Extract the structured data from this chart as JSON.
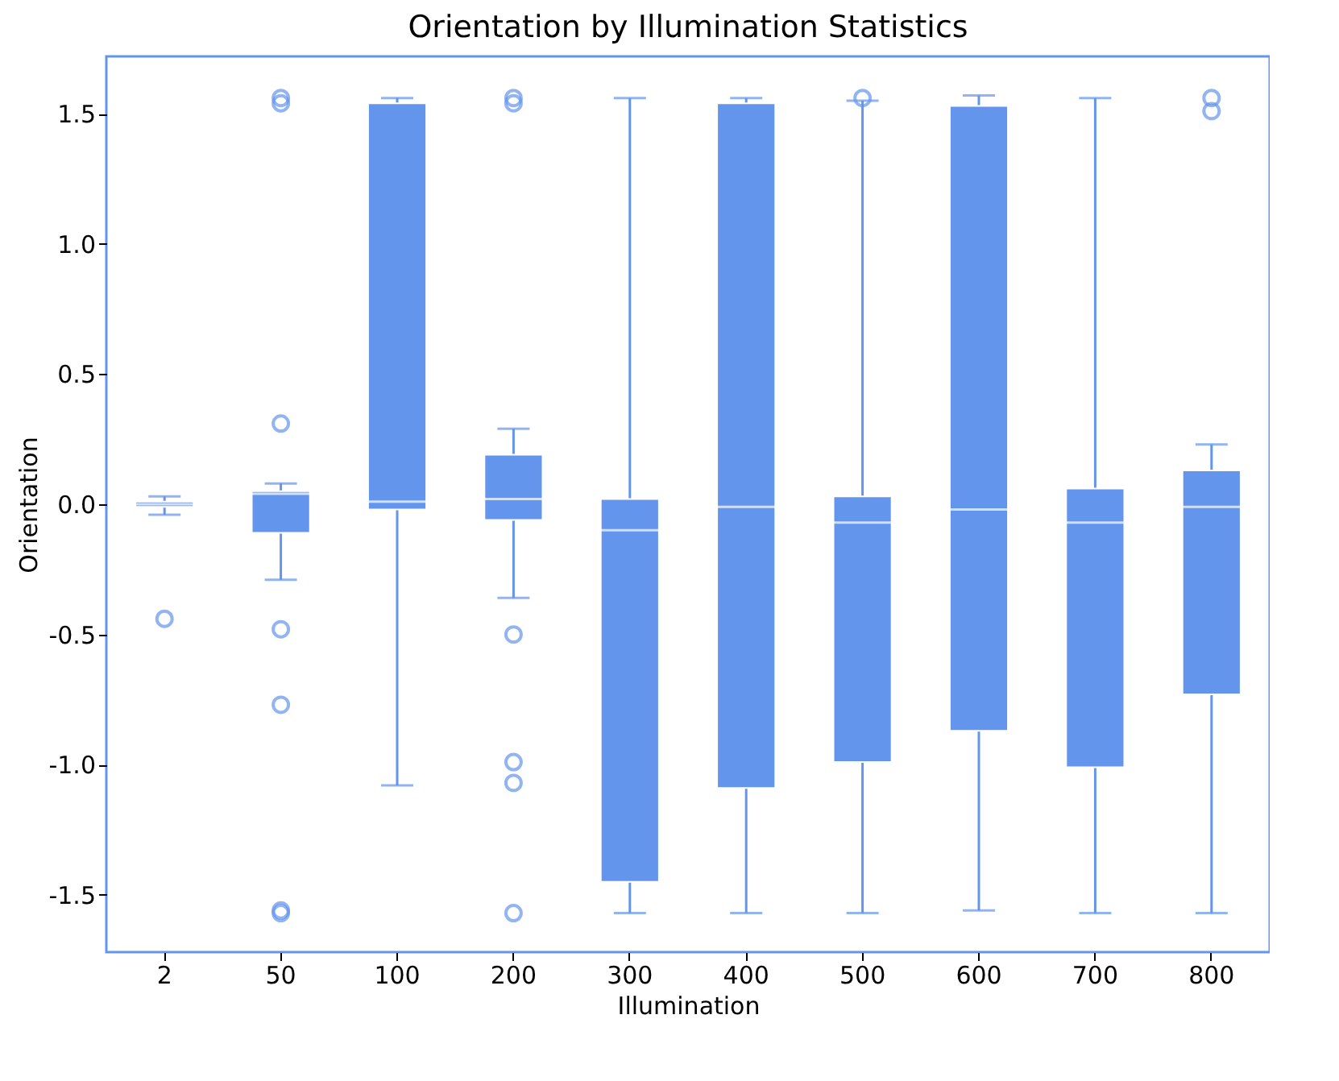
{
  "chart_data": {
    "type": "box",
    "title": "Orientation by Illumination Statistics",
    "xlabel": "Illumination",
    "ylabel": "Orientation",
    "categories": [
      "2",
      "50",
      "100",
      "200",
      "300",
      "400",
      "500",
      "600",
      "700",
      "800"
    ],
    "color": "#6495ed",
    "boxes": [
      {
        "low": -0.04,
        "q1": -0.01,
        "median": 0.0,
        "q3": 0.01,
        "high": 0.03,
        "outliers": [
          -0.44
        ]
      },
      {
        "low": -0.29,
        "q1": -0.11,
        "median": 0.04,
        "q3": 0.05,
        "high": 0.08,
        "outliers": [
          1.56,
          1.54,
          0.31,
          -0.48,
          -0.77,
          -1.56,
          -1.57
        ]
      },
      {
        "low": -1.08,
        "q1": -0.02,
        "median": 0.01,
        "q3": 1.54,
        "high": 1.56
      },
      {
        "low": -0.36,
        "q1": -0.06,
        "median": 0.02,
        "q3": 0.19,
        "high": 0.29,
        "outliers": [
          1.56,
          1.54,
          -0.5,
          -0.99,
          -1.07,
          -1.57
        ]
      },
      {
        "low": -1.57,
        "q1": -1.45,
        "median": -0.1,
        "q3": 0.02,
        "high": 1.56
      },
      {
        "low": -1.57,
        "q1": -1.09,
        "median": -0.01,
        "q3": 1.54,
        "high": 1.56
      },
      {
        "low": -1.57,
        "q1": -0.99,
        "median": -0.07,
        "q3": 0.03,
        "high": 1.55,
        "outliers": [
          1.56
        ]
      },
      {
        "low": -1.56,
        "q1": -0.87,
        "median": -0.02,
        "q3": 1.53,
        "high": 1.57
      },
      {
        "low": -1.57,
        "q1": -1.01,
        "median": -0.07,
        "q3": 0.06,
        "high": 1.56
      },
      {
        "low": -1.57,
        "q1": -0.73,
        "median": -0.01,
        "q3": 0.13,
        "high": 0.23,
        "outliers": [
          1.56,
          1.51
        ]
      }
    ],
    "ylim": [
      -1.72,
      1.72
    ],
    "yticks": [
      -1.5,
      {
        "value": -1,
        "label": "-1.0"
      },
      -0.5,
      {
        "value": 0,
        "label": "0.0"
      },
      0.5,
      {
        "value": 1,
        "label": "1.0"
      },
      1.5
    ],
    "grid": false
  }
}
